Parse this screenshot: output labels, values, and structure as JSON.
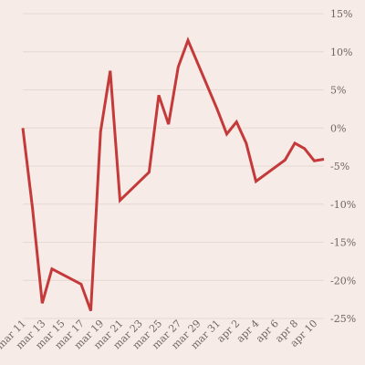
{
  "chart_data": {
    "type": "line",
    "title": "",
    "xlabel": "",
    "ylabel": "",
    "x_ticks": [
      "mar 11",
      "mar 13",
      "mar 15",
      "mar 17",
      "mar 19",
      "mar 21",
      "mar 23",
      "mar 25",
      "mar 27",
      "mar 29",
      "mar 31",
      "apr 2",
      "apr 4",
      "apr 6",
      "apr 8",
      "apr 10"
    ],
    "y_ticks": [
      "15%",
      "10%",
      "5%",
      "0%",
      "-5%",
      "-10%",
      "-15%",
      "-20%",
      "-25%"
    ],
    "y_tick_values": [
      15,
      10,
      5,
      0,
      -5,
      -10,
      -15,
      -20,
      -25
    ],
    "ylim": [
      -25,
      15
    ],
    "grid": true,
    "legend": "none",
    "line_color": "#c43a3a",
    "series": [
      {
        "name": "",
        "points": [
          {
            "x": "2020-03-11",
            "y": 0
          },
          {
            "x": "2020-03-12",
            "y": -10.5
          },
          {
            "x": "2020-03-13",
            "y": -23.0
          },
          {
            "x": "2020-03-14",
            "y": -18.5
          },
          {
            "x": "2020-03-17",
            "y": -20.5
          },
          {
            "x": "2020-03-18",
            "y": -24.0
          },
          {
            "x": "2020-03-19",
            "y": -0.5
          },
          {
            "x": "2020-03-20",
            "y": 7.5
          },
          {
            "x": "2020-03-21",
            "y": -9.5
          },
          {
            "x": "2020-03-24",
            "y": -5.8
          },
          {
            "x": "2020-03-25",
            "y": 4.3
          },
          {
            "x": "2020-03-26",
            "y": 0.5
          },
          {
            "x": "2020-03-27",
            "y": 8.0
          },
          {
            "x": "2020-03-28",
            "y": 11.5
          },
          {
            "x": "2020-03-31",
            "y": 2.5
          },
          {
            "x": "2020-04-01",
            "y": -0.8
          },
          {
            "x": "2020-04-02",
            "y": 0.8
          },
          {
            "x": "2020-04-03",
            "y": -2.0
          },
          {
            "x": "2020-04-04",
            "y": -7.0
          },
          {
            "x": "2020-04-07",
            "y": -4.2
          },
          {
            "x": "2020-04-08",
            "y": -2.0
          },
          {
            "x": "2020-04-09",
            "y": -2.7
          },
          {
            "x": "2020-04-10",
            "y": -4.3
          },
          {
            "x": "2020-04-11",
            "y": -4.1
          }
        ]
      }
    ]
  }
}
